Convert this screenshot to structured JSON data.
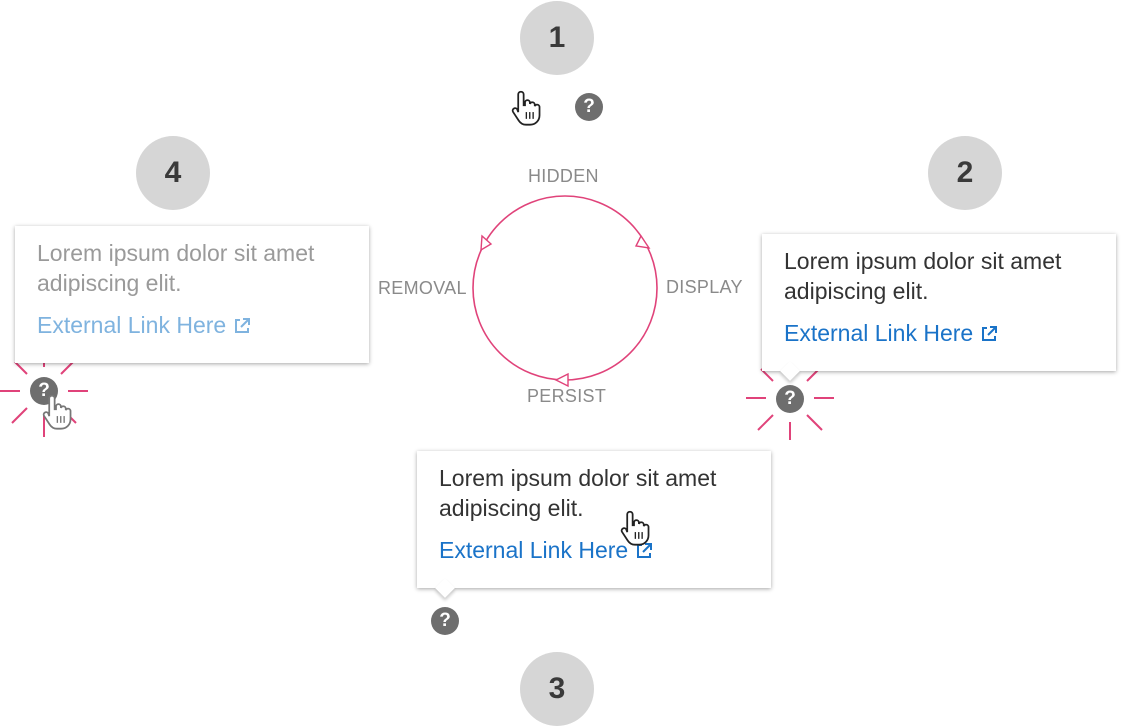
{
  "steps": [
    "1",
    "2",
    "3",
    "4"
  ],
  "cycle": {
    "hidden": "HIDDEN",
    "display": "DISPLAY",
    "persist": "PERSIST",
    "removal": "REMOVAL"
  },
  "tooltip": {
    "text": "Lorem ipsum dolor sit amet adipiscing elit.",
    "link": "External Link Here"
  },
  "help_glyph": "?",
  "colors": {
    "accent": "#e0437a",
    "link": "#1a73c8",
    "link_faded": "#7fb3df",
    "step_bg": "#d6d6d6",
    "help_bg": "#6e6e6e"
  },
  "icons": [
    "hand-pointer-icon",
    "help-icon",
    "external-link-icon"
  ]
}
